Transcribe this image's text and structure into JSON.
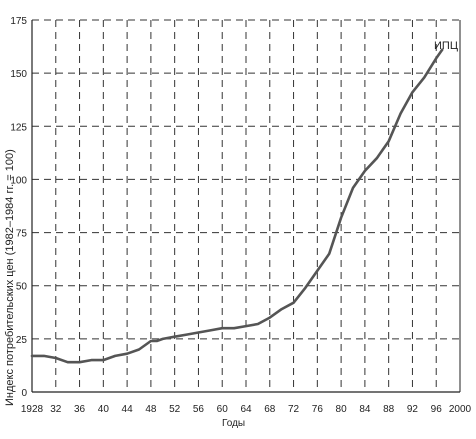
{
  "chart_data": {
    "type": "line",
    "title": "",
    "xlabel": "Годы",
    "ylabel": "Индекс потребительских цен (1982–1984 гг. = 100)",
    "xlim": [
      1928,
      2000
    ],
    "ylim": [
      0,
      175
    ],
    "x_ticks": [
      "1928",
      "32",
      "36",
      "40",
      "44",
      "48",
      "52",
      "56",
      "60",
      "64",
      "68",
      "72",
      "76",
      "80",
      "84",
      "88",
      "92",
      "96",
      "2000"
    ],
    "y_ticks": [
      0,
      25,
      50,
      75,
      100,
      125,
      150,
      175
    ],
    "grid": true,
    "series": [
      {
        "name": "ИПЦ",
        "x": [
          1928,
          1930,
          1932,
          1934,
          1936,
          1938,
          1940,
          1942,
          1944,
          1946,
          1948,
          1949,
          1950,
          1952,
          1954,
          1956,
          1958,
          1960,
          1962,
          1964,
          1966,
          1968,
          1970,
          1972,
          1974,
          1976,
          1978,
          1980,
          1982,
          1984,
          1986,
          1988,
          1990,
          1992,
          1994,
          1996,
          1997
        ],
        "y": [
          17,
          17,
          16,
          14,
          14,
          15,
          15,
          17,
          18,
          20,
          24,
          24,
          25,
          26,
          27,
          28,
          29,
          30,
          30,
          31,
          32,
          35,
          39,
          42,
          49,
          57,
          65,
          82,
          96,
          104,
          110,
          118,
          131,
          141,
          148,
          157,
          161
        ]
      }
    ]
  }
}
